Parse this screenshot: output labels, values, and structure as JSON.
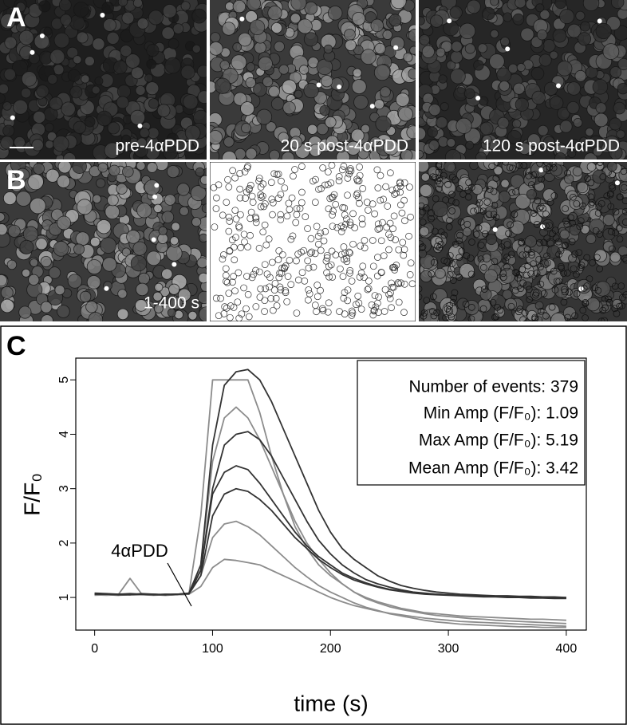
{
  "panel_a": {
    "label": "A",
    "captions": [
      "pre-4αPDD",
      "20 s post-4αPDD",
      "120 s post-4αPDD"
    ]
  },
  "panel_b": {
    "label": "B",
    "captions": [
      "1-400 s"
    ]
  },
  "chart_data": {
    "type": "line",
    "panel_label": "C",
    "xlabel": "time (s)",
    "ylabel": "F/F₀",
    "annotations": [
      "4αPDD"
    ],
    "stats": [
      "Number of events: 379",
      "Min Amp (F/F₀): 1.09",
      "Max Amp (F/F₀): 5.19",
      "Mean Amp (F/F₀): 3.42"
    ],
    "xlim": [
      -16,
      417
    ],
    "ylim": [
      0.4,
      5.4
    ],
    "xticks": [
      0,
      100,
      200,
      300,
      400
    ],
    "yticks": [
      1,
      2,
      3,
      4,
      5
    ],
    "grid": false,
    "x": [
      0,
      10,
      20,
      30,
      40,
      50,
      60,
      70,
      80,
      90,
      100,
      110,
      120,
      130,
      140,
      150,
      160,
      170,
      180,
      190,
      200,
      210,
      220,
      230,
      240,
      250,
      260,
      270,
      280,
      290,
      300,
      310,
      320,
      330,
      340,
      350,
      360,
      370,
      380,
      390,
      400
    ],
    "series": [
      {
        "color": "#8c8c8c",
        "values": [
          1.05,
          1.05,
          1.04,
          1.06,
          1.05,
          1.05,
          1.06,
          1.05,
          1.07,
          2.5,
          5.0,
          5.0,
          5.0,
          5.0,
          4.4,
          3.6,
          2.9,
          2.3,
          1.9,
          1.6,
          1.4,
          1.25,
          1.1,
          1.0,
          0.92,
          0.86,
          0.8,
          0.76,
          0.72,
          0.7,
          0.68,
          0.66,
          0.65,
          0.64,
          0.63,
          0.62,
          0.61,
          0.6,
          0.6,
          0.59,
          0.58
        ]
      },
      {
        "color": "#8c8c8c",
        "values": [
          1.04,
          1.05,
          1.05,
          1.35,
          1.06,
          1.05,
          1.04,
          1.05,
          1.06,
          1.6,
          3.5,
          4.3,
          4.5,
          4.3,
          3.9,
          3.4,
          2.9,
          2.4,
          2.0,
          1.7,
          1.45,
          1.25,
          1.1,
          0.98,
          0.9,
          0.83,
          0.78,
          0.74,
          0.7,
          0.67,
          0.65,
          0.63,
          0.61,
          0.6,
          0.58,
          0.57,
          0.56,
          0.55,
          0.54,
          0.53,
          0.52
        ]
      },
      {
        "color": "#8c8c8c",
        "values": [
          1.05,
          1.04,
          1.05,
          1.05,
          1.05,
          1.04,
          1.05,
          1.05,
          1.06,
          1.2,
          1.55,
          1.7,
          1.68,
          1.64,
          1.6,
          1.5,
          1.4,
          1.3,
          1.2,
          1.1,
          1.0,
          0.92,
          0.85,
          0.8,
          0.75,
          0.71,
          0.68,
          0.65,
          0.62,
          0.6,
          0.58,
          0.56,
          0.55,
          0.54,
          0.53,
          0.52,
          0.51,
          0.5,
          0.49,
          0.48,
          0.47
        ]
      },
      {
        "color": "#8c8c8c",
        "values": [
          1.05,
          1.05,
          1.04,
          1.05,
          1.05,
          1.05,
          1.04,
          1.05,
          1.06,
          1.4,
          2.1,
          2.35,
          2.4,
          2.3,
          2.15,
          1.95,
          1.75,
          1.55,
          1.38,
          1.22,
          1.1,
          1.0,
          0.9,
          0.82,
          0.76,
          0.7,
          0.66,
          0.62,
          0.58,
          0.55,
          0.53,
          0.51,
          0.5,
          0.49,
          0.48,
          0.47,
          0.46,
          0.46,
          0.45,
          0.45,
          0.45
        ]
      },
      {
        "color": "#333333",
        "values": [
          1.08,
          1.07,
          1.06,
          1.05,
          1.07,
          1.06,
          1.05,
          1.06,
          1.08,
          1.6,
          3.8,
          4.9,
          5.15,
          5.19,
          5.0,
          4.6,
          4.1,
          3.6,
          3.1,
          2.6,
          2.2,
          1.9,
          1.7,
          1.55,
          1.4,
          1.3,
          1.22,
          1.17,
          1.13,
          1.1,
          1.08,
          1.06,
          1.05,
          1.04,
          1.03,
          1.03,
          1.02,
          1.02,
          1.01,
          1.01,
          1.0
        ]
      },
      {
        "color": "#333333",
        "values": [
          1.06,
          1.06,
          1.05,
          1.05,
          1.06,
          1.05,
          1.05,
          1.06,
          1.07,
          1.5,
          2.9,
          3.3,
          3.42,
          3.35,
          3.1,
          2.8,
          2.5,
          2.2,
          1.95,
          1.75,
          1.6,
          1.45,
          1.35,
          1.27,
          1.2,
          1.15,
          1.12,
          1.09,
          1.07,
          1.06,
          1.05,
          1.04,
          1.03,
          1.02,
          1.02,
          1.01,
          1.01,
          1.0,
          1.0,
          1.0,
          0.99
        ]
      },
      {
        "color": "#333333",
        "values": [
          1.07,
          1.06,
          1.06,
          1.07,
          1.06,
          1.06,
          1.05,
          1.06,
          1.07,
          1.4,
          2.5,
          2.9,
          3.0,
          2.95,
          2.8,
          2.6,
          2.35,
          2.1,
          1.9,
          1.7,
          1.55,
          1.42,
          1.32,
          1.25,
          1.19,
          1.14,
          1.11,
          1.08,
          1.06,
          1.05,
          1.04,
          1.03,
          1.02,
          1.01,
          1.01,
          1.0,
          1.0,
          0.99,
          0.99,
          0.98,
          0.98
        ]
      },
      {
        "color": "#333333",
        "values": [
          1.06,
          1.06,
          1.05,
          1.06,
          1.06,
          1.05,
          1.06,
          1.06,
          1.07,
          1.5,
          3.0,
          3.8,
          4.0,
          4.05,
          3.9,
          3.6,
          3.2,
          2.8,
          2.4,
          2.05,
          1.8,
          1.6,
          1.45,
          1.33,
          1.25,
          1.19,
          1.14,
          1.1,
          1.08,
          1.06,
          1.05,
          1.04,
          1.03,
          1.03,
          1.02,
          1.02,
          1.01,
          1.01,
          1.0,
          1.0,
          1.0
        ]
      }
    ]
  }
}
